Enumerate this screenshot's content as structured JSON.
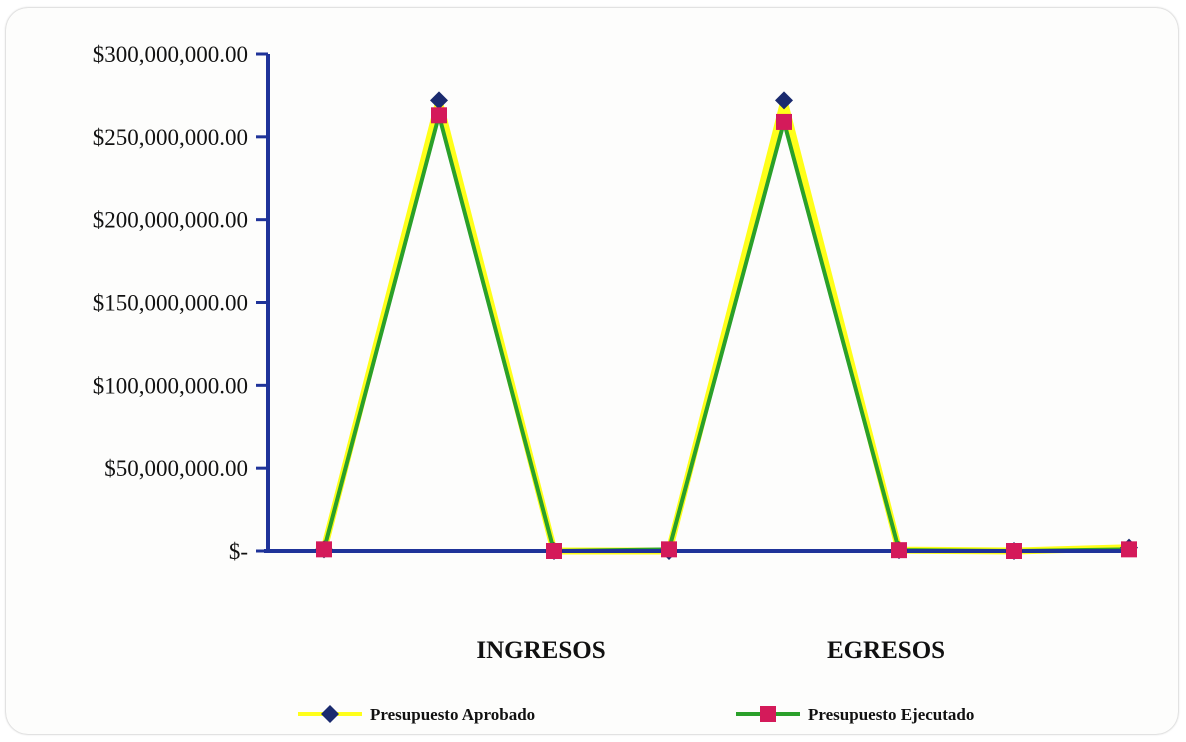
{
  "chart_data": {
    "type": "line",
    "x": [
      "",
      "INGRESOS",
      "",
      "",
      "EGRESOS",
      "",
      "",
      ""
    ],
    "category_labels": [
      "INGRESOS",
      "EGRESOS"
    ],
    "yticks": [
      0,
      50000000,
      100000000,
      150000000,
      200000000,
      250000000,
      300000000
    ],
    "ytick_labels": [
      "$-",
      "$50,000,000.00",
      "$100,000,000.00",
      "$150,000,000.00",
      "$200,000,000.00",
      "$250,000,000.00",
      "$300,000,000.00"
    ],
    "ylim": [
      0,
      300000000
    ],
    "grid": false,
    "legend_position": "bottom",
    "series": [
      {
        "name": "Presupuesto Aprobado",
        "line_color": "#ffff1a",
        "marker": "diamond",
        "marker_color": "#1a2a6e",
        "values": [
          1000000,
          272000000,
          0,
          0,
          272000000,
          500000,
          0,
          2000000
        ]
      },
      {
        "name": "Presupuesto Ejecutado",
        "line_color": "#2aa02a",
        "marker": "square",
        "marker_color": "#d41a5a",
        "values": [
          1000000,
          263000000,
          0,
          1000000,
          259000000,
          500000,
          0,
          1000000
        ]
      }
    ],
    "axis_color": "#1f3399"
  }
}
